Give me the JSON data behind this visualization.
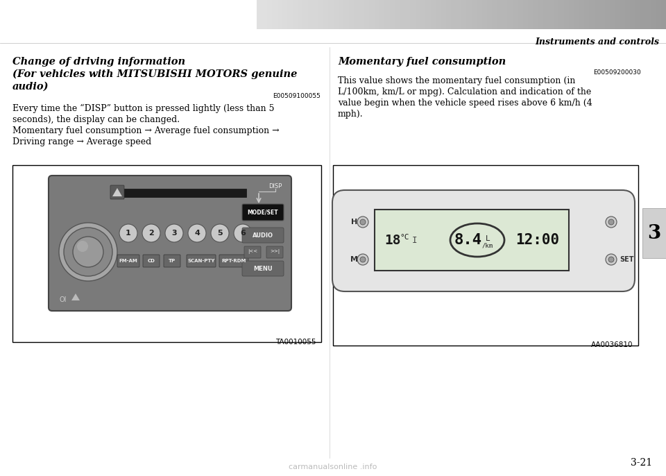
{
  "page_bg": "#ffffff",
  "header_text": "Instruments and controls",
  "section_tab_text": "3",
  "page_number": "3-21",
  "left_title_line1": "Change of driving information",
  "left_title_line2": "(For vehicles with MITSUBISHI MOTORS genuine",
  "left_title_line3": "audio)",
  "left_code": "E00509100055",
  "left_body1": "Every time the “DISP” button is pressed lightly (less than 5",
  "left_body2": "seconds), the display can be changed.",
  "left_body3": "Momentary fuel consumption → Average fuel consumption →",
  "left_body4": "Driving range → Average speed",
  "left_figure_caption": "TA0010055",
  "right_title": "Momentary fuel consumption",
  "right_code": "E00509200030",
  "right_body1": "This value shows the momentary fuel consumption (in",
  "right_body2": "L/100km, km/L or mpg). Calculation and indication of the",
  "right_body3": "value begin when the vehicle speed rises above 6 km/h (4",
  "right_body4": "mph).",
  "right_figure_caption": "AA0036810",
  "watermark_text": "carmanualsonline .info",
  "watermark_color": "#aaaaaa"
}
